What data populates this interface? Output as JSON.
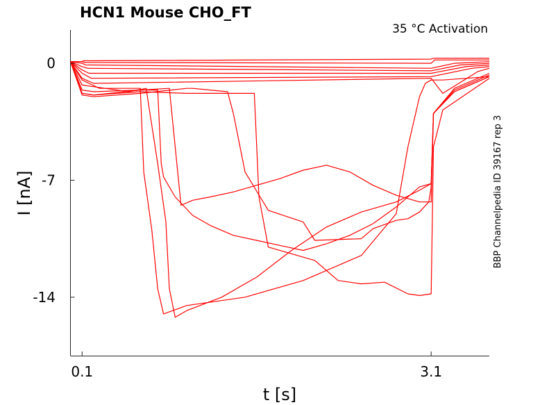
{
  "chart_data": {
    "type": "line",
    "title": "HCN1  Mouse  CHO_FT",
    "annotation": "35 °C  Activation",
    "side_label": "BBP Channelpedia ID 39167 rep 3",
    "xlabel": "t [s]",
    "ylabel": "I [nA]",
    "xlim": [
      0.0,
      3.6
    ],
    "ylim": [
      -17.5,
      2.0
    ],
    "x_ticks": [
      0.1,
      3.1
    ],
    "x_tick_labels": [
      "0.1",
      "3.1"
    ],
    "y_ticks": [
      0,
      -7,
      -14
    ],
    "y_tick_labels": [
      "0",
      "-7",
      "-14"
    ],
    "grid": false,
    "line_color": "#ff0000",
    "series": [
      {
        "x": [
          0.0,
          0.1,
          0.11,
          3.1,
          3.12,
          3.6
        ],
        "y": [
          0.1,
          0.1,
          0.15,
          0.25,
          0.3,
          0.3
        ]
      },
      {
        "x": [
          0.0,
          0.1,
          0.12,
          3.1,
          3.13,
          3.6
        ],
        "y": [
          0.1,
          0.1,
          0.05,
          0.0,
          0.2,
          0.2
        ]
      },
      {
        "x": [
          0.0,
          0.1,
          0.13,
          3.1,
          3.3,
          3.6
        ],
        "y": [
          0.1,
          0.0,
          -0.1,
          -0.3,
          0.0,
          0.1
        ]
      },
      {
        "x": [
          0.0,
          0.1,
          0.15,
          3.1,
          3.35,
          3.6
        ],
        "y": [
          0.1,
          -0.2,
          -0.3,
          -0.45,
          -0.1,
          0.0
        ]
      },
      {
        "x": [
          0.0,
          0.1,
          0.16,
          3.1,
          3.4,
          3.6
        ],
        "y": [
          0.1,
          -0.4,
          -0.6,
          -0.6,
          -0.2,
          -0.1
        ]
      },
      {
        "x": [
          0.0,
          0.1,
          0.18,
          3.1,
          3.45,
          3.6
        ],
        "y": [
          0.1,
          -0.6,
          -0.9,
          -0.8,
          -0.3,
          -0.2
        ]
      },
      {
        "x": [
          0.0,
          0.1,
          0.2,
          3.1,
          3.2,
          3.5,
          3.6
        ],
        "y": [
          0.1,
          -0.9,
          -1.2,
          -0.9,
          -1.8,
          -0.5,
          -0.3
        ]
      },
      {
        "x": [
          0.0,
          0.1,
          0.25,
          0.6,
          0.63,
          0.7,
          0.75,
          0.8,
          1.0,
          1.5,
          2.0,
          2.5,
          2.8,
          2.9,
          3.0,
          3.05,
          3.1,
          3.2,
          3.6
        ],
        "y": [
          0.1,
          -1.0,
          -1.5,
          -1.5,
          -6.5,
          -10.0,
          -13.5,
          -15.0,
          -14.5,
          -14.0,
          -13.0,
          -11.5,
          -9.0,
          -5.0,
          -2.0,
          -1.2,
          -1.0,
          -1.0,
          -0.8
        ]
      },
      {
        "x": [
          0.0,
          0.1,
          0.2,
          0.5,
          0.65,
          0.75,
          0.82,
          0.85,
          0.9,
          1.0,
          1.3,
          1.6,
          1.9,
          2.2,
          2.5,
          2.8,
          3.0,
          3.1,
          3.12,
          3.3,
          3.6
        ],
        "y": [
          0.1,
          -1.3,
          -1.4,
          -1.7,
          -1.5,
          -6.0,
          -9.5,
          -13.5,
          -15.2,
          -14.8,
          -14.0,
          -12.8,
          -11.2,
          -9.8,
          -8.9,
          -8.3,
          -7.6,
          -7.2,
          -3.0,
          -1.5,
          -0.6
        ]
      },
      {
        "x": [
          0.0,
          0.1,
          0.2,
          0.6,
          0.75,
          0.78,
          0.8,
          0.9,
          1.05,
          1.2,
          1.4,
          1.6,
          1.8,
          2.0,
          2.2,
          2.4,
          2.6,
          2.8,
          3.0,
          3.1,
          3.12,
          3.3,
          3.6
        ],
        "y": [
          0.1,
          -1.6,
          -1.7,
          -1.6,
          -1.6,
          -6.0,
          -6.8,
          -8.0,
          -9.1,
          -9.7,
          -10.3,
          -10.6,
          -10.9,
          -11.2,
          -10.8,
          -10.3,
          -9.6,
          -8.6,
          -7.4,
          -7.2,
          -3.0,
          -1.6,
          -0.7
        ]
      },
      {
        "x": [
          0.0,
          0.1,
          0.2,
          0.6,
          0.85,
          0.9,
          0.95,
          1.05,
          1.2,
          1.4,
          1.6,
          1.8,
          2.0,
          2.2,
          2.4,
          2.6,
          2.8,
          3.0,
          3.1,
          3.12,
          3.3,
          3.6
        ],
        "y": [
          0.1,
          -1.8,
          -1.9,
          -1.6,
          -1.5,
          -5.0,
          -8.5,
          -8.2,
          -8.0,
          -7.7,
          -7.3,
          -6.9,
          -6.4,
          -6.1,
          -6.5,
          -7.3,
          -7.9,
          -8.3,
          -8.3,
          -3.0,
          -1.7,
          -0.8
        ]
      },
      {
        "x": [
          0.0,
          0.1,
          0.2,
          0.6,
          1.0,
          1.05,
          1.2,
          1.35,
          1.4,
          1.5,
          1.7,
          2.0,
          2.1,
          2.5,
          2.6,
          2.8,
          2.9,
          3.0,
          3.08,
          3.1,
          3.12,
          3.3,
          3.6
        ],
        "y": [
          0.1,
          -1.9,
          -2.0,
          -1.8,
          -1.5,
          -1.5,
          -1.6,
          -1.7,
          -3.0,
          -6.5,
          -8.8,
          -9.5,
          -10.6,
          -10.5,
          -9.9,
          -9.4,
          -9.3,
          -8.9,
          -8.3,
          -7.4,
          -3.0,
          -1.7,
          -0.8
        ]
      },
      {
        "x": [
          0.0,
          0.1,
          0.2,
          0.6,
          1.0,
          1.3,
          1.5,
          1.58,
          1.62,
          1.7,
          1.9,
          2.1,
          2.3,
          2.5,
          2.7,
          2.9,
          3.0,
          3.1,
          3.12,
          3.2,
          3.6
        ],
        "y": [
          0.1,
          -1.8,
          -1.9,
          -1.7,
          -1.8,
          -1.8,
          -1.8,
          -1.8,
          -8.0,
          -11.0,
          -11.4,
          -11.8,
          -13.0,
          -13.2,
          -13.1,
          -13.8,
          -13.9,
          -13.8,
          -5.0,
          -2.8,
          -0.9
        ]
      }
    ]
  }
}
